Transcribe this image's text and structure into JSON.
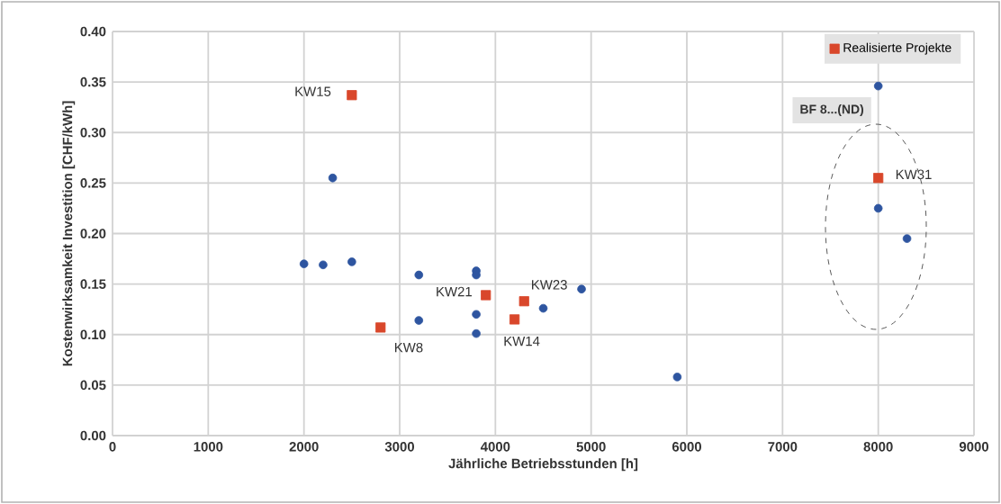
{
  "chart_data": {
    "type": "scatter",
    "xlabel": "Jährliche Betriebsstunden [h]",
    "ylabel": "Kostenwirksamkeit Investition [CHF/kWh]",
    "xlim": [
      0,
      9000
    ],
    "xticks": [
      0,
      1000,
      2000,
      3000,
      4000,
      5000,
      6000,
      7000,
      8000,
      9000
    ],
    "ylim": [
      0,
      0.4
    ],
    "yticks": [
      {
        "value": 0,
        "label": "0.00"
      },
      {
        "value": 0.05,
        "label": "0.05"
      },
      {
        "value": 0.1,
        "label": "0.10"
      },
      {
        "value": 0.15,
        "label": "0.15"
      },
      {
        "value": 0.2,
        "label": "0.20"
      },
      {
        "value": 0.25,
        "label": "0.25"
      },
      {
        "value": 0.3,
        "label": "0.30"
      },
      {
        "value": 0.35,
        "label": "0.35"
      },
      {
        "value": 0.4,
        "label": "0.40"
      }
    ],
    "grid": true,
    "legend": "top right",
    "series": [
      {
        "color": "#2e55a0",
        "marker": "circle",
        "x": [
          2000,
          2200,
          2300,
          2500,
          3200,
          3200,
          3800,
          3800,
          3800,
          3800,
          4500,
          4900,
          5900,
          8000,
          8000,
          8300
        ],
        "values": [
          0.17,
          0.169,
          0.255,
          0.172,
          0.159,
          0.114,
          0.163,
          0.159,
          0.12,
          0.101,
          0.126,
          0.145,
          0.058,
          0.346,
          0.225,
          0.195
        ]
      },
      {
        "name": "Realisierte Projekte",
        "color": "#d9472b",
        "marker": "square",
        "x": [
          2500,
          2800,
          3900,
          4200,
          4300,
          8000
        ],
        "values": [
          0.337,
          0.107,
          0.139,
          0.115,
          0.133,
          0.255
        ]
      }
    ],
    "annotations": [
      {
        "text": "KW15",
        "x": 2500,
        "y": 0.337
      },
      {
        "text": "KW8",
        "x": 2800,
        "y": 0.107
      },
      {
        "text": "KW21",
        "x": 3900,
        "y": 0.139
      },
      {
        "text": "KW14",
        "x": 4200,
        "y": 0.115
      },
      {
        "text": "KW23",
        "x": 4300,
        "y": 0.133
      },
      {
        "text": "KW31",
        "x": 8000,
        "y": 0.255
      },
      "BF 8...(ND)"
    ]
  }
}
